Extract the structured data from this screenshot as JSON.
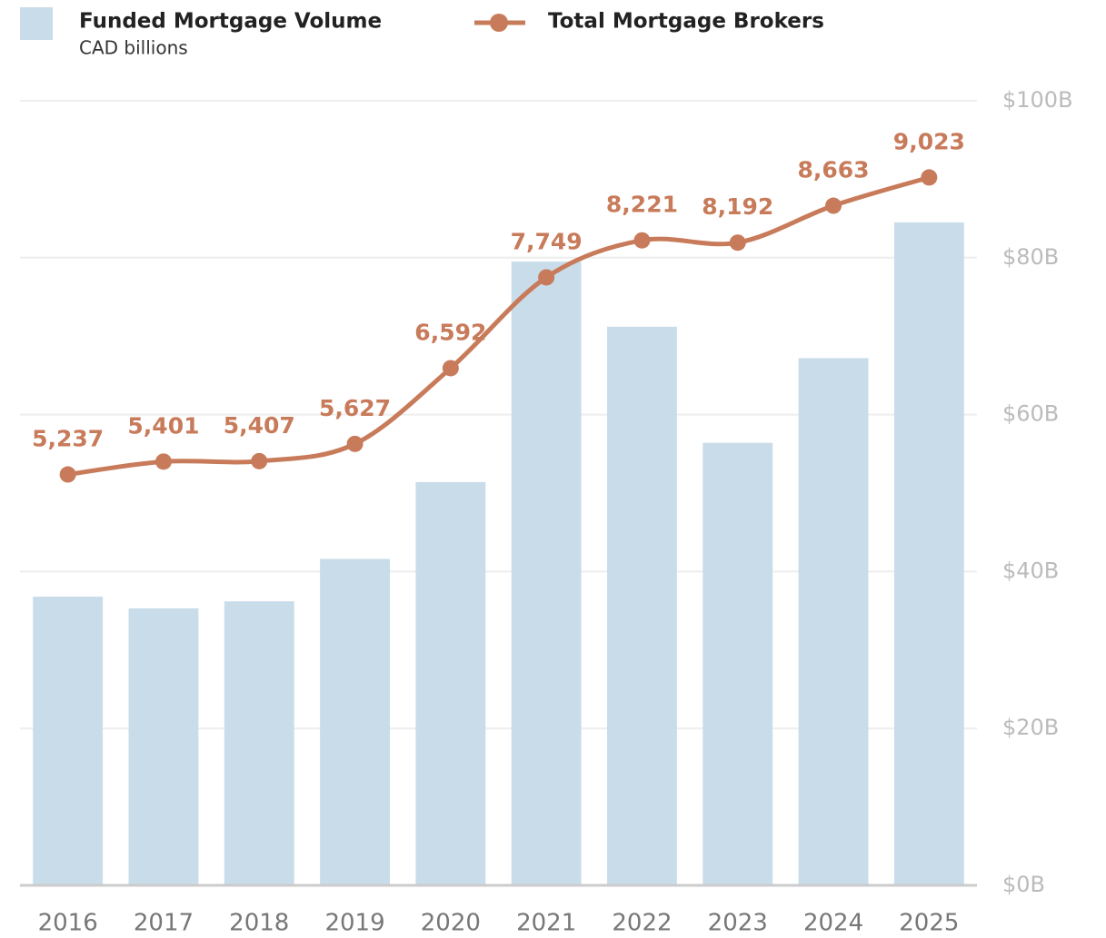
{
  "chart_data": {
    "type": "bar_line",
    "subtitle": "CAD billions",
    "categories": [
      "2016",
      "2017",
      "2018",
      "2019",
      "2020",
      "2021",
      "2022",
      "2023",
      "2024",
      "2025"
    ],
    "series": [
      {
        "name": "Funded Mortgage Volume",
        "type": "bar",
        "color": "#c9dcea",
        "values": [
          36.8,
          35.3,
          36.2,
          41.6,
          51.4,
          79.5,
          71.2,
          56.4,
          67.2,
          84.5
        ]
      },
      {
        "name": "Total Mortgage Brokers",
        "type": "line",
        "axis": "y2",
        "color": "#c87b5a",
        "values": [
          5237,
          5401,
          5407,
          5627,
          6592,
          7749,
          8221,
          8192,
          8663,
          9023
        ],
        "value_labels": [
          "5,237",
          "5,401",
          "5,407",
          "5,627",
          "6,592",
          "7,749",
          "8,221",
          "8,192",
          "8,663",
          "9,023"
        ]
      }
    ],
    "ylim": [
      0,
      100
    ],
    "yticks": [
      {
        "value": 0,
        "label": "$0B"
      },
      {
        "value": 20,
        "label": "$20B"
      },
      {
        "value": 40,
        "label": "$40B"
      },
      {
        "value": 60,
        "label": "$60B"
      },
      {
        "value": 80,
        "label": "$80B"
      },
      {
        "value": 100,
        "label": "$100B"
      }
    ],
    "y2lim": [
      0,
      10000
    ],
    "grid": true,
    "legend": "top-left"
  }
}
